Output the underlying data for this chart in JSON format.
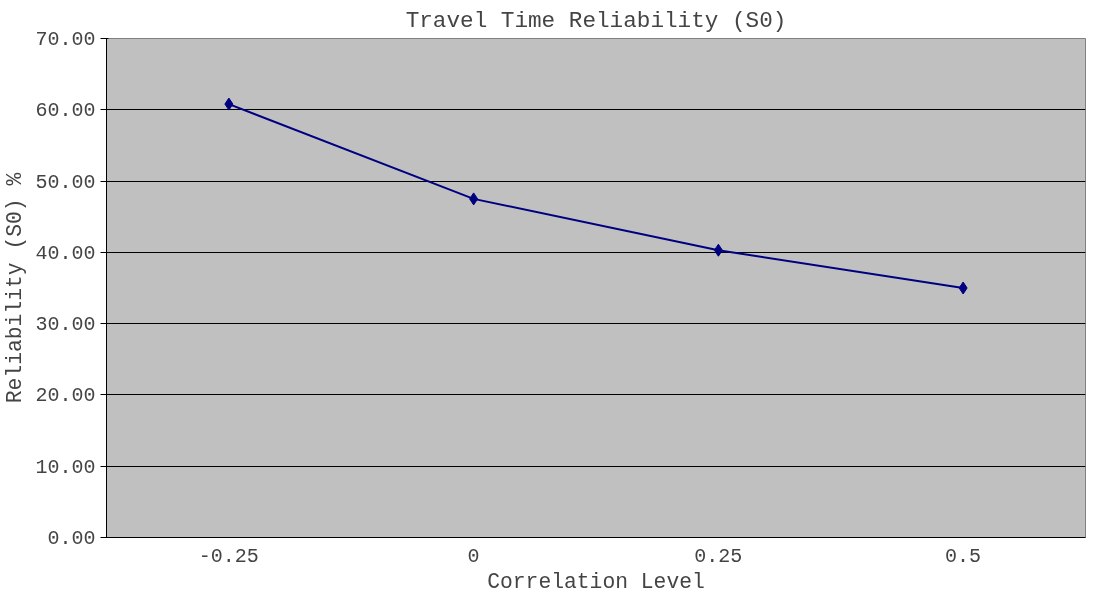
{
  "chart_data": {
    "type": "line",
    "title": "Travel Time Reliability (S0)",
    "xlabel": "Correlation Level",
    "ylabel": "Reliability (S0) %",
    "categories": [
      "-0.25",
      "0",
      "0.25",
      "0.5"
    ],
    "series": [
      {
        "color": "#000080",
        "values": [
          60.8,
          47.5,
          40.3,
          35.0
        ]
      }
    ],
    "ylim": [
      0,
      70
    ],
    "yticks": [
      {
        "value": 0,
        "label": "0.00"
      },
      {
        "value": 10,
        "label": "10.00"
      },
      {
        "value": 20,
        "label": "20.00"
      },
      {
        "value": 30,
        "label": "30.00"
      },
      {
        "value": 40,
        "label": "40.00"
      },
      {
        "value": 50,
        "label": "50.00"
      },
      {
        "value": 60,
        "label": "60.00"
      },
      {
        "value": 70,
        "label": "70.00"
      }
    ],
    "grid": "y",
    "marker": "diamond",
    "line_style": "solid"
  }
}
